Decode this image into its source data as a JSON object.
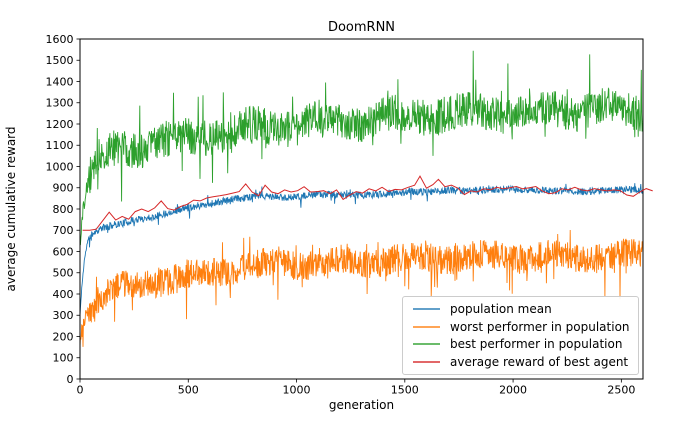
{
  "chart_data": {
    "type": "line",
    "title": "DoomRNN",
    "xlabel": "generation",
    "ylabel": "average cumulative reward",
    "xlim": [
      0,
      2600
    ],
    "ylim": [
      0,
      1600
    ],
    "xticks": [
      0,
      500,
      1000,
      1500,
      2000,
      2500
    ],
    "yticks": [
      0,
      100,
      200,
      300,
      400,
      500,
      600,
      700,
      800,
      900,
      1000,
      1100,
      1200,
      1300,
      1400,
      1500,
      1600
    ],
    "grid": false,
    "legend_position": "lower right",
    "legend_alpha": 0.7,
    "series": [
      {
        "name": "population mean",
        "color": "#1f77b4",
        "style": "noisy",
        "seed": 11,
        "step": 2,
        "width": 0.9,
        "noise_amp": 17,
        "spike_chance": 0.05,
        "spike_down": 45,
        "spike_up": 40,
        "trend": [
          [
            0,
            300
          ],
          [
            8,
            430
          ],
          [
            20,
            560
          ],
          [
            35,
            650
          ],
          [
            60,
            690
          ],
          [
            100,
            708
          ],
          [
            150,
            720
          ],
          [
            200,
            730
          ],
          [
            250,
            748
          ],
          [
            300,
            760
          ],
          [
            350,
            772
          ],
          [
            400,
            782
          ],
          [
            450,
            792
          ],
          [
            500,
            802
          ],
          [
            550,
            814
          ],
          [
            600,
            826
          ],
          [
            650,
            838
          ],
          [
            700,
            848
          ],
          [
            750,
            852
          ],
          [
            800,
            856
          ],
          [
            850,
            856
          ],
          [
            900,
            855
          ],
          [
            950,
            858
          ],
          [
            1000,
            862
          ],
          [
            1100,
            866
          ],
          [
            1200,
            862
          ],
          [
            1300,
            870
          ],
          [
            1400,
            872
          ],
          [
            1500,
            876
          ],
          [
            1600,
            882
          ],
          [
            1700,
            892
          ],
          [
            1800,
            882
          ],
          [
            1900,
            890
          ],
          [
            2000,
            896
          ],
          [
            2100,
            886
          ],
          [
            2200,
            882
          ],
          [
            2300,
            886
          ],
          [
            2400,
            886
          ],
          [
            2500,
            886
          ],
          [
            2600,
            890
          ]
        ]
      },
      {
        "name": "worst performer in population",
        "color": "#ff7f0e",
        "style": "noisy",
        "seed": 23,
        "step": 2,
        "width": 0.9,
        "noise_amp": 68,
        "spike_chance": 0.06,
        "spike_down": 160,
        "spike_up": 110,
        "trend": [
          [
            0,
            185
          ],
          [
            10,
            230
          ],
          [
            25,
            300
          ],
          [
            50,
            340
          ],
          [
            80,
            375
          ],
          [
            120,
            405
          ],
          [
            160,
            420
          ],
          [
            200,
            430
          ],
          [
            250,
            442
          ],
          [
            300,
            452
          ],
          [
            350,
            462
          ],
          [
            400,
            470
          ],
          [
            450,
            476
          ],
          [
            500,
            482
          ],
          [
            550,
            490
          ],
          [
            600,
            500
          ],
          [
            650,
            510
          ],
          [
            700,
            520
          ],
          [
            750,
            526
          ],
          [
            800,
            532
          ],
          [
            850,
            536
          ],
          [
            900,
            540
          ],
          [
            950,
            544
          ],
          [
            1000,
            546
          ],
          [
            1100,
            552
          ],
          [
            1200,
            550
          ],
          [
            1300,
            556
          ],
          [
            1400,
            560
          ],
          [
            1500,
            566
          ],
          [
            1600,
            572
          ],
          [
            1700,
            576
          ],
          [
            1800,
            570
          ],
          [
            1900,
            576
          ],
          [
            2000,
            580
          ],
          [
            2100,
            576
          ],
          [
            2200,
            570
          ],
          [
            2300,
            576
          ],
          [
            2400,
            580
          ],
          [
            2500,
            576
          ],
          [
            2600,
            582
          ]
        ]
      },
      {
        "name": "best performer in population",
        "color": "#2ca02c",
        "style": "noisy",
        "seed": 37,
        "step": 2,
        "width": 0.9,
        "noise_amp": 85,
        "spike_chance": 0.06,
        "spike_down": 170,
        "spike_up": 230,
        "trend": [
          [
            0,
            650
          ],
          [
            10,
            760
          ],
          [
            25,
            870
          ],
          [
            45,
            950
          ],
          [
            70,
            1010
          ],
          [
            100,
            1045
          ],
          [
            140,
            1065
          ],
          [
            200,
            1082
          ],
          [
            300,
            1102
          ],
          [
            400,
            1120
          ],
          [
            500,
            1132
          ],
          [
            600,
            1150
          ],
          [
            700,
            1168
          ],
          [
            800,
            1180
          ],
          [
            900,
            1190
          ],
          [
            1000,
            1200
          ],
          [
            1100,
            1210
          ],
          [
            1200,
            1218
          ],
          [
            1300,
            1220
          ],
          [
            1400,
            1228
          ],
          [
            1500,
            1238
          ],
          [
            1600,
            1248
          ],
          [
            1700,
            1250
          ],
          [
            1800,
            1252
          ],
          [
            1900,
            1258
          ],
          [
            2000,
            1260
          ],
          [
            2100,
            1262
          ],
          [
            2200,
            1268
          ],
          [
            2300,
            1268
          ],
          [
            2400,
            1270
          ],
          [
            2500,
            1262
          ],
          [
            2600,
            1268
          ]
        ]
      },
      {
        "name": "average reward of best agent",
        "color": "#d62728",
        "style": "line",
        "width": 1.0,
        "points": [
          [
            12,
            700
          ],
          [
            45,
            700
          ],
          [
            75,
            705
          ],
          [
            105,
            745
          ],
          [
            135,
            785
          ],
          [
            165,
            748
          ],
          [
            195,
            765
          ],
          [
            225,
            752
          ],
          [
            255,
            788
          ],
          [
            285,
            800
          ],
          [
            315,
            788
          ],
          [
            345,
            805
          ],
          [
            375,
            838
          ],
          [
            405,
            802
          ],
          [
            435,
            795
          ],
          [
            465,
            812
          ],
          [
            495,
            822
          ],
          [
            525,
            842
          ],
          [
            555,
            838
          ],
          [
            585,
            852
          ],
          [
            615,
            858
          ],
          [
            645,
            862
          ],
          [
            675,
            868
          ],
          [
            705,
            875
          ],
          [
            735,
            882
          ],
          [
            765,
            918
          ],
          [
            795,
            880
          ],
          [
            825,
            862
          ],
          [
            855,
            912
          ],
          [
            885,
            880
          ],
          [
            915,
            872
          ],
          [
            945,
            890
          ],
          [
            975,
            880
          ],
          [
            1005,
            886
          ],
          [
            1035,
            905
          ],
          [
            1065,
            880
          ],
          [
            1095,
            882
          ],
          [
            1125,
            886
          ],
          [
            1155,
            872
          ],
          [
            1185,
            890
          ],
          [
            1215,
            845
          ],
          [
            1245,
            865
          ],
          [
            1275,
            882
          ],
          [
            1305,
            875
          ],
          [
            1335,
            895
          ],
          [
            1365,
            885
          ],
          [
            1395,
            902
          ],
          [
            1425,
            882
          ],
          [
            1455,
            892
          ],
          [
            1485,
            890
          ],
          [
            1515,
            902
          ],
          [
            1545,
            912
          ],
          [
            1570,
            955
          ],
          [
            1600,
            898
          ],
          [
            1630,
            915
          ],
          [
            1655,
            940
          ],
          [
            1685,
            905
          ],
          [
            1715,
            912
          ],
          [
            1745,
            898
          ],
          [
            1775,
            868
          ],
          [
            1805,
            885
          ],
          [
            1835,
            880
          ],
          [
            1865,
            895
          ],
          [
            1895,
            890
          ],
          [
            1925,
            902
          ],
          [
            1955,
            895
          ],
          [
            1985,
            900
          ],
          [
            2015,
            906
          ],
          [
            2045,
            895
          ],
          [
            2075,
            900
          ],
          [
            2105,
            906
          ],
          [
            2135,
            885
          ],
          [
            2165,
            872
          ],
          [
            2195,
            876
          ],
          [
            2225,
            895
          ],
          [
            2255,
            890
          ],
          [
            2285,
            902
          ],
          [
            2315,
            890
          ],
          [
            2345,
            885
          ],
          [
            2375,
            896
          ],
          [
            2405,
            890
          ],
          [
            2435,
            885
          ],
          [
            2465,
            890
          ],
          [
            2495,
            886
          ],
          [
            2525,
            866
          ],
          [
            2555,
            860
          ],
          [
            2585,
            880
          ],
          [
            2615,
            896
          ],
          [
            2645,
            885
          ]
        ]
      }
    ]
  }
}
